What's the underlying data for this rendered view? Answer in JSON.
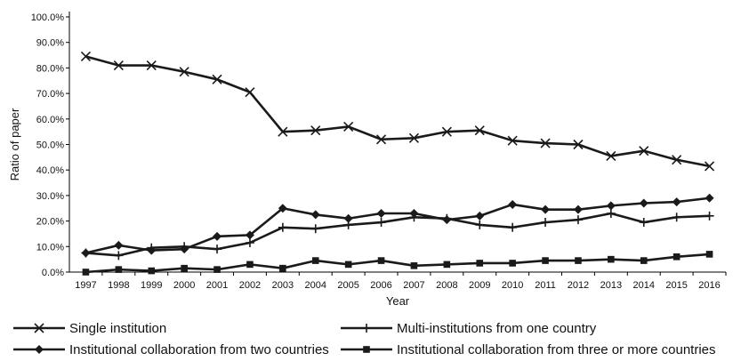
{
  "chart_data": {
    "type": "line",
    "xlabel": "Year",
    "ylabel": "Ratio of paper",
    "ylim": [
      0,
      100
    ],
    "y_ticks": [
      "0.0%",
      "10.0%",
      "20.0%",
      "30.0%",
      "40.0%",
      "50.0%",
      "60.0%",
      "70.0%",
      "80.0%",
      "90.0%",
      "100.0%"
    ],
    "categories": [
      "1997",
      "1998",
      "1999",
      "2000",
      "2001",
      "2002",
      "2003",
      "2004",
      "2005",
      "2006",
      "2007",
      "2008",
      "2009",
      "2010",
      "2011",
      "2012",
      "2013",
      "2014",
      "2015",
      "2016"
    ],
    "grid": false,
    "legend_position": "bottom",
    "series": [
      {
        "name": "Single institution",
        "marker": "x",
        "values": [
          84.5,
          81.0,
          81.0,
          78.5,
          75.5,
          70.5,
          55.0,
          55.5,
          57.0,
          52.0,
          52.5,
          55.0,
          55.5,
          51.5,
          50.5,
          50.0,
          45.5,
          47.5,
          44.0,
          41.5
        ]
      },
      {
        "name": "Multi-institutions from one country",
        "marker": "plus",
        "values": [
          7.5,
          6.5,
          9.5,
          10.0,
          9.0,
          11.5,
          17.5,
          17.0,
          18.5,
          19.5,
          21.5,
          21.0,
          18.5,
          17.5,
          19.5,
          20.5,
          23.0,
          19.5,
          21.5,
          22.0
        ]
      },
      {
        "name": "Institutional collaboration from two countries",
        "marker": "diamond",
        "values": [
          7.5,
          10.5,
          8.5,
          9.0,
          14.0,
          14.5,
          25.0,
          22.5,
          21.0,
          23.0,
          23.0,
          20.5,
          22.0,
          26.5,
          24.5,
          24.5,
          26.0,
          27.0,
          27.5,
          29.0
        ]
      },
      {
        "name": "Institutional collaboration from three or more countries",
        "marker": "square",
        "values": [
          0.0,
          1.0,
          0.5,
          1.5,
          1.0,
          3.0,
          1.5,
          4.5,
          3.0,
          4.5,
          2.5,
          3.0,
          3.5,
          3.5,
          4.5,
          4.5,
          5.0,
          4.5,
          6.0,
          7.0
        ]
      }
    ]
  },
  "colors": {
    "line": "#1a1a1a",
    "axis": "#000000",
    "background": "#ffffff"
  }
}
